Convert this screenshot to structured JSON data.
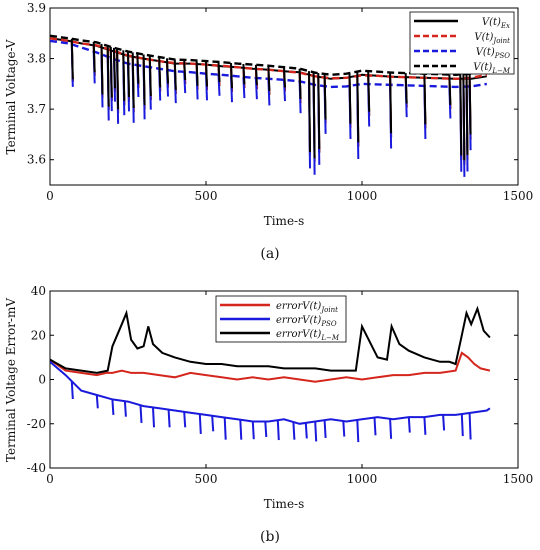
{
  "chart_data": [
    {
      "type": "line",
      "xlabel": "Time-s",
      "ylabel": "Terminal Voltage-V",
      "xlim": [
        0,
        1500
      ],
      "ylim": [
        3.55,
        3.9
      ],
      "xticks": [
        "0",
        "500",
        "1000",
        "1500"
      ],
      "xtick_values": [
        0,
        500,
        1000,
        1500
      ],
      "yticks": [
        "3.6",
        "3.7",
        "3.8",
        "3.9"
      ],
      "ytick_values": [
        3.6,
        3.7,
        3.8,
        3.9
      ],
      "caption": "(a)",
      "legend_position": "top-right",
      "grid": false,
      "series": [
        {
          "name": "V(t)Ex",
          "label_main": "V(t)",
          "label_sub": "Ex",
          "color": "#000000",
          "style": "solid",
          "x": [
            0,
            60,
            100,
            150,
            200,
            250,
            300,
            350,
            400,
            450,
            500,
            550,
            600,
            650,
            700,
            750,
            800,
            850,
            900,
            950,
            1000,
            1050,
            1100,
            1150,
            1200,
            1250,
            1300,
            1350,
            1400
          ],
          "y": [
            3.84,
            3.835,
            3.83,
            3.825,
            3.815,
            3.805,
            3.8,
            3.795,
            3.79,
            3.79,
            3.788,
            3.785,
            3.783,
            3.78,
            3.778,
            3.775,
            3.773,
            3.765,
            3.76,
            3.762,
            3.768,
            3.766,
            3.764,
            3.763,
            3.762,
            3.761,
            3.76,
            3.76,
            3.765
          ]
        },
        {
          "name": "V(t)Joint",
          "label_main": "V(t)",
          "label_sub": "Joint",
          "color": "#d4261c",
          "style": "dashed",
          "x": [
            0,
            60,
            100,
            150,
            200,
            250,
            300,
            350,
            400,
            450,
            500,
            550,
            600,
            650,
            700,
            750,
            800,
            850,
            900,
            950,
            1000,
            1050,
            1100,
            1150,
            1200,
            1250,
            1300,
            1350,
            1400
          ],
          "y": [
            3.84,
            3.835,
            3.83,
            3.826,
            3.816,
            3.806,
            3.8,
            3.795,
            3.791,
            3.79,
            3.788,
            3.786,
            3.783,
            3.78,
            3.778,
            3.775,
            3.772,
            3.765,
            3.761,
            3.762,
            3.767,
            3.766,
            3.764,
            3.763,
            3.762,
            3.761,
            3.76,
            3.762,
            3.768
          ]
        },
        {
          "name": "V(t)PSO",
          "label_main": "V(t)",
          "label_sub": "PSO",
          "color": "#1a1adc",
          "style": "dashed",
          "x": [
            0,
            60,
            100,
            150,
            200,
            250,
            300,
            350,
            400,
            450,
            500,
            550,
            600,
            650,
            700,
            750,
            800,
            850,
            900,
            950,
            1000,
            1050,
            1100,
            1150,
            1200,
            1250,
            1300,
            1350,
            1400
          ],
          "y": [
            3.835,
            3.83,
            3.822,
            3.812,
            3.8,
            3.79,
            3.785,
            3.78,
            3.775,
            3.773,
            3.77,
            3.768,
            3.765,
            3.762,
            3.76,
            3.758,
            3.755,
            3.748,
            3.744,
            3.745,
            3.75,
            3.749,
            3.748,
            3.747,
            3.746,
            3.745,
            3.744,
            3.745,
            3.75
          ]
        },
        {
          "name": "V(t)L-M",
          "label_main": "V(t)",
          "label_sub": "L−M",
          "color": "#000000",
          "style": "dashed",
          "x": [
            0,
            60,
            100,
            150,
            200,
            250,
            300,
            350,
            400,
            450,
            500,
            550,
            600,
            650,
            700,
            750,
            800,
            850,
            900,
            950,
            1000,
            1050,
            1100,
            1150,
            1200,
            1250,
            1300,
            1350,
            1400
          ],
          "y": [
            3.845,
            3.84,
            3.836,
            3.832,
            3.822,
            3.814,
            3.808,
            3.803,
            3.798,
            3.797,
            3.795,
            3.793,
            3.79,
            3.788,
            3.786,
            3.783,
            3.78,
            3.772,
            3.768,
            3.77,
            3.776,
            3.774,
            3.772,
            3.771,
            3.77,
            3.769,
            3.768,
            3.77,
            3.775
          ]
        }
      ],
      "spikes": {
        "x": [
          70,
          140,
          165,
          185,
          195,
          205,
          215,
          235,
          250,
          265,
          280,
          300,
          320,
          350,
          375,
          400,
          430,
          470,
          500,
          540,
          580,
          620,
          660,
          700,
          750,
          800,
          830,
          845,
          860,
          880,
          960,
          985,
          1020,
          1090,
          1140,
          1200,
          1280,
          1315,
          1325,
          1335,
          1345
        ],
        "depth": [
          0.08,
          0.06,
          0.1,
          0.12,
          0.1,
          0.08,
          0.12,
          0.1,
          0.09,
          0.11,
          0.06,
          0.1,
          0.08,
          0.06,
          0.05,
          0.06,
          0.04,
          0.05,
          0.05,
          0.04,
          0.05,
          0.04,
          0.04,
          0.05,
          0.04,
          0.06,
          0.16,
          0.17,
          0.15,
          0.09,
          0.1,
          0.14,
          0.08,
          0.12,
          0.06,
          0.1,
          0.06,
          0.16,
          0.17,
          0.16,
          0.12
        ]
      }
    },
    {
      "type": "line",
      "xlabel": "Time-s",
      "ylabel": "Terminal Voltage Error-mV",
      "xlim": [
        0,
        1500
      ],
      "ylim": [
        -40,
        40
      ],
      "xticks": [
        "0",
        "500",
        "1000",
        "1500"
      ],
      "xtick_values": [
        0,
        500,
        1000,
        1500
      ],
      "yticks": [
        "-40",
        "-20",
        "0",
        "20",
        "40"
      ],
      "ytick_values": [
        -40,
        -20,
        0,
        20,
        40
      ],
      "caption": "(b)",
      "legend_position": "top-center",
      "grid": false,
      "series": [
        {
          "name": "errorV(t)Joint",
          "label_main": "errorV(t)",
          "label_sub": "Joint",
          "color": "#d4261c",
          "style": "solid",
          "x": [
            0,
            50,
            100,
            150,
            180,
            200,
            230,
            260,
            300,
            350,
            400,
            450,
            500,
            550,
            600,
            650,
            700,
            750,
            800,
            850,
            900,
            950,
            1000,
            1050,
            1100,
            1150,
            1200,
            1250,
            1300,
            1320,
            1340,
            1360,
            1380,
            1410
          ],
          "y": [
            9,
            4,
            3,
            2,
            3,
            3,
            4,
            3,
            3,
            2,
            1,
            3,
            2,
            1,
            0,
            1,
            0,
            1,
            0,
            -1,
            0,
            1,
            0,
            1,
            2,
            2,
            3,
            3,
            4,
            12,
            10,
            7,
            5,
            4
          ]
        },
        {
          "name": "errorV(t)PSO",
          "label_main": "errorV(t)",
          "label_sub": "PSO",
          "color": "#1a1adc",
          "style": "solid",
          "x": [
            0,
            50,
            100,
            150,
            200,
            250,
            300,
            350,
            400,
            450,
            500,
            550,
            600,
            650,
            700,
            750,
            800,
            850,
            900,
            950,
            1000,
            1050,
            1100,
            1150,
            1200,
            1250,
            1300,
            1350,
            1400,
            1410
          ],
          "y": [
            8,
            2,
            -5,
            -7,
            -9,
            -10,
            -12,
            -13,
            -14,
            -15,
            -16,
            -17,
            -18,
            -19,
            -19,
            -18,
            -20,
            -19,
            -18,
            -19,
            -18,
            -17,
            -18,
            -17,
            -17,
            -16,
            -16,
            -15,
            -14,
            -13
          ]
        },
        {
          "name": "errorV(t)L-M",
          "label_main": "errorV(t)",
          "label_sub": "L−M",
          "color": "#000000",
          "style": "solid",
          "x": [
            0,
            50,
            100,
            150,
            185,
            200,
            215,
            230,
            245,
            260,
            280,
            300,
            315,
            330,
            360,
            400,
            450,
            500,
            550,
            600,
            650,
            700,
            750,
            800,
            850,
            900,
            950,
            980,
            1000,
            1050,
            1080,
            1095,
            1120,
            1150,
            1200,
            1250,
            1280,
            1300,
            1320,
            1335,
            1350,
            1370,
            1390,
            1410
          ],
          "y": [
            9,
            5,
            4,
            3,
            4,
            15,
            20,
            25,
            30,
            18,
            14,
            15,
            24,
            16,
            12,
            10,
            8,
            7,
            7,
            6,
            6,
            6,
            5,
            5,
            5,
            4,
            4,
            4,
            24,
            10,
            9,
            24,
            16,
            13,
            10,
            8,
            8,
            7,
            20,
            30,
            25,
            32,
            22,
            19
          ]
        }
      ],
      "spikes_blue": {
        "x": [
          70,
          150,
          200,
          240,
          290,
          330,
          380,
          430,
          480,
          520,
          560,
          610,
          650,
          690,
          730,
          780,
          820,
          850,
          880,
          940,
          985,
          1040,
          1090,
          1150,
          1200,
          1260,
          1320,
          1345
        ],
        "depth": [
          8,
          6,
          7,
          7,
          8,
          9,
          8,
          7,
          9,
          7,
          10,
          9,
          8,
          7,
          9,
          8,
          7,
          9,
          8,
          7,
          10,
          8,
          9,
          7,
          8,
          7,
          10,
          12
        ]
      }
    }
  ]
}
